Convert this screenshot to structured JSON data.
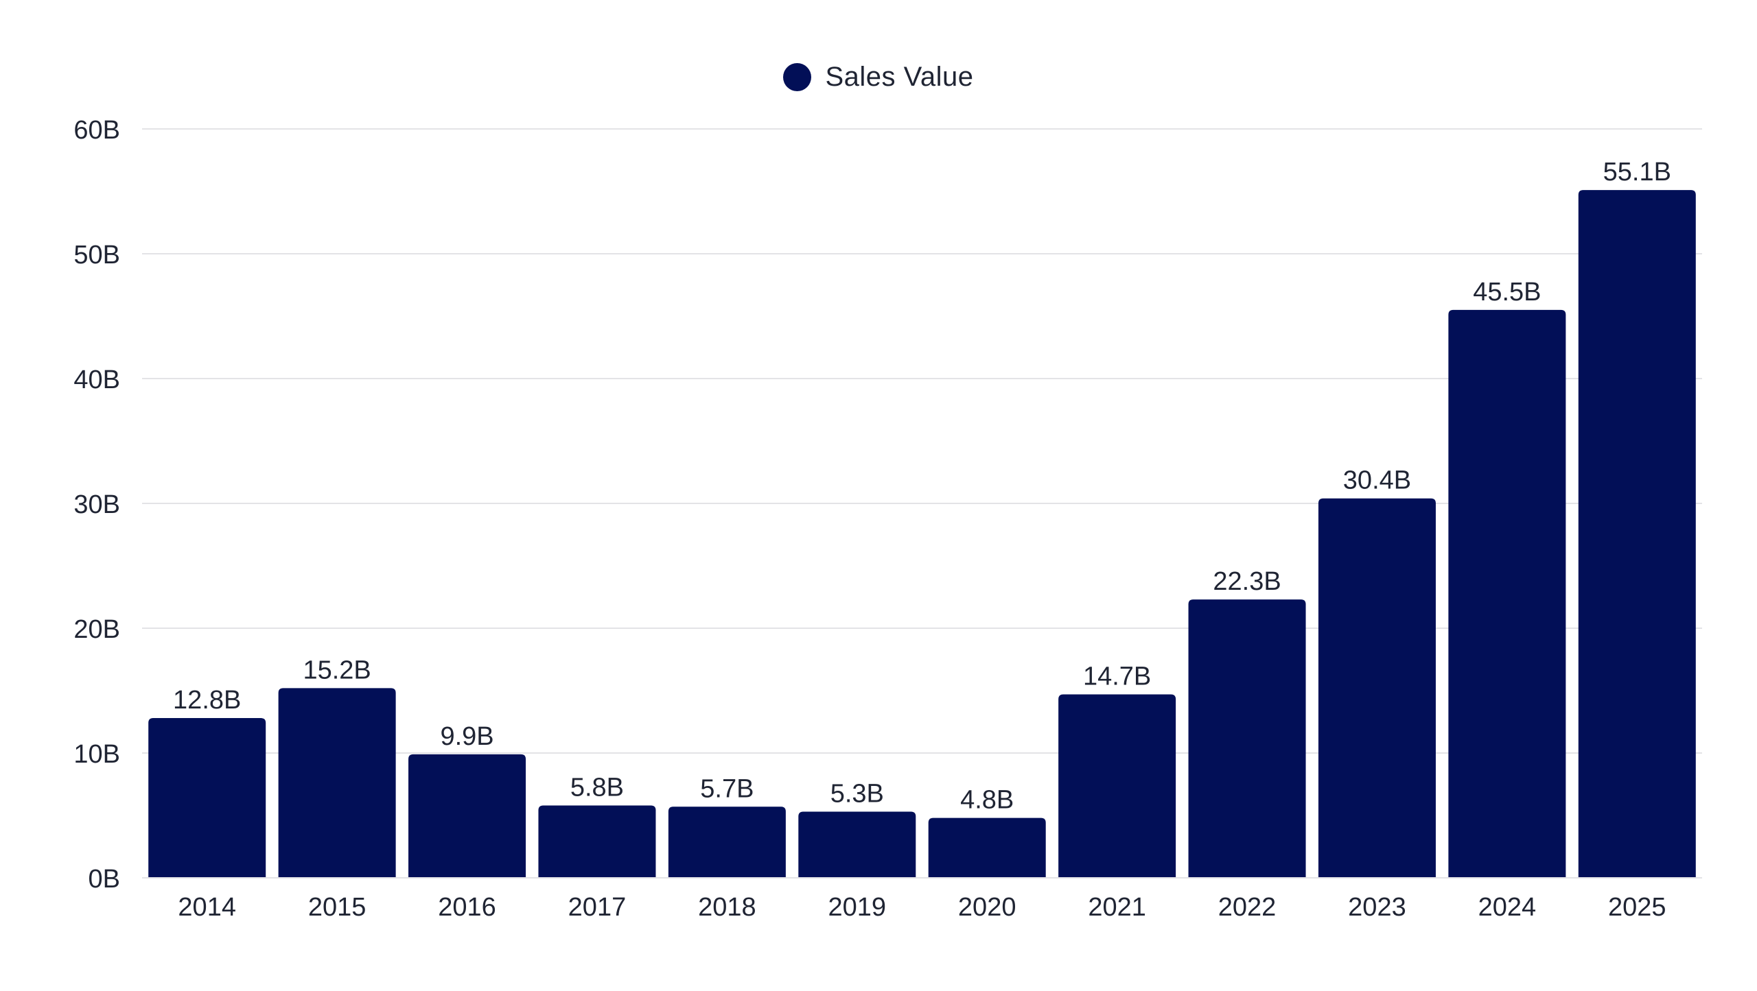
{
  "colors": {
    "bar": "#020f57",
    "grid": "#e3e3e6",
    "text": "#1f2433",
    "background": "#ffffff"
  },
  "chart_data": {
    "type": "bar",
    "categories": [
      "2014",
      "2015",
      "2016",
      "2017",
      "2018",
      "2019",
      "2020",
      "2021",
      "2022",
      "2023",
      "2024",
      "2025"
    ],
    "series": [
      {
        "name": "Sales Value",
        "values": [
          12.8,
          15.2,
          9.9,
          5.8,
          5.7,
          5.3,
          4.8,
          14.7,
          22.3,
          30.4,
          45.5,
          55.1
        ],
        "data_labels": [
          "12.8B",
          "15.2B",
          "9.9B",
          "5.8B",
          "5.7B",
          "5.3B",
          "4.8B",
          "14.7B",
          "22.3B",
          "30.4B",
          "45.5B",
          "55.1B"
        ]
      }
    ],
    "title": "",
    "xlabel": "",
    "ylabel": "",
    "ylim": [
      0,
      60
    ],
    "yticks": [
      0,
      10,
      20,
      30,
      40,
      50,
      60
    ],
    "ytick_labels": [
      "0B",
      "10B",
      "20B",
      "30B",
      "40B",
      "50B",
      "60B"
    ],
    "grid": true,
    "legend_position": "top-center"
  }
}
